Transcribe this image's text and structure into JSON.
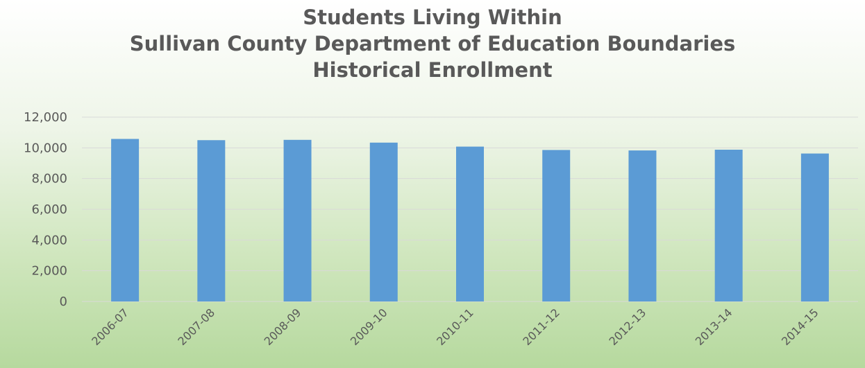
{
  "chart_data": {
    "type": "bar",
    "title_lines": [
      "Students Living Within",
      "Sullivan County Department of Education Boundaries",
      "Historical Enrollment"
    ],
    "categories": [
      "2006-07",
      "2007-08",
      "2008-09",
      "2009-10",
      "2010-11",
      "2011-12",
      "2012-13",
      "2013-14",
      "2014-15"
    ],
    "values": [
      10580,
      10500,
      10520,
      10340,
      10080,
      9860,
      9830,
      9880,
      9630
    ],
    "ylim": [
      0,
      12000
    ],
    "yticks": [
      0,
      2000,
      4000,
      6000,
      8000,
      10000,
      12000
    ],
    "ytick_labels": [
      "0",
      "2,000",
      "4,000",
      "6,000",
      "8,000",
      "10,000",
      "12,000"
    ],
    "grid": true,
    "legend": "none",
    "colors": {
      "bar": "#5b9bd5",
      "grid": "#d9d9d9",
      "text": "#595959"
    }
  }
}
